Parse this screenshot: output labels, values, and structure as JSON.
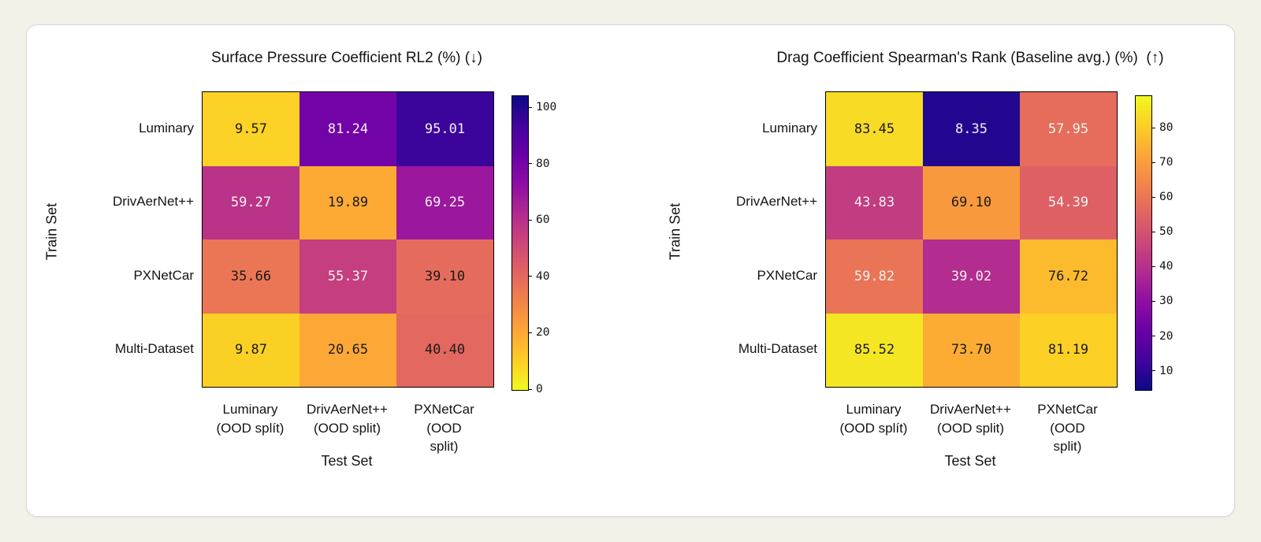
{
  "canvas": {
    "background": "#f2f2e9"
  },
  "card": {
    "background": "#ffffff",
    "border_color": "#d7d7dc"
  },
  "colormap": {
    "name": "plasma",
    "stops": [
      "#0d0887",
      "#41049d",
      "#6a00a8",
      "#8f0da4",
      "#b12a90",
      "#cc4778",
      "#e16462",
      "#f2844b",
      "#fca636",
      "#fcce25",
      "#f0f921"
    ]
  },
  "cell_text_colors": {
    "dark": "#1a1a1a",
    "light": "#f5f2ef"
  },
  "chart_data": [
    {
      "type": "heatmap",
      "title": "Surface Pressure Coefficient RL2 (%) (↓)",
      "xlabel": "Test Set",
      "ylabel": "Train Set",
      "row_labels": [
        "Luminary",
        "DrivAerNet++",
        "PXNetCar",
        "Multi-Dataset"
      ],
      "col_labels": [
        "Luminary\n(OOD splít)",
        "DrivAerNet++\n(OOD split)",
        "PXNetCar\n(OOD split)"
      ],
      "values": [
        [
          9.57,
          81.24,
          95.01
        ],
        [
          59.27,
          19.89,
          69.25
        ],
        [
          35.66,
          55.37,
          39.1
        ],
        [
          9.87,
          20.65,
          40.4
        ]
      ],
      "text_colors": [
        [
          "dark",
          "light",
          "light"
        ],
        [
          "light",
          "dark",
          "light"
        ],
        [
          "dark",
          "light",
          "dark"
        ],
        [
          "dark",
          "dark",
          "dark"
        ]
      ],
      "colormap_reversed": true,
      "colorbar": {
        "vmin": 0,
        "vmax": 104.2,
        "ticks": [
          100,
          80,
          60,
          40,
          20,
          0
        ]
      }
    },
    {
      "type": "heatmap",
      "title": "Drag Coefficient Spearman's Rank (Baseline avg.) (%)  (↑)",
      "xlabel": "Test Set",
      "ylabel": "Train Set",
      "row_labels": [
        "Luminary",
        "DrivAerNet++",
        "PXNetCar",
        "Multi-Dataset"
      ],
      "col_labels": [
        "Luminary\n(OOD splít)",
        "DrivAerNet++\n(OOD split)",
        "PXNetCar\n(OOD split)"
      ],
      "values": [
        [
          83.45,
          8.35,
          57.95
        ],
        [
          43.83,
          69.1,
          54.39
        ],
        [
          59.82,
          39.02,
          76.72
        ],
        [
          85.52,
          73.7,
          81.19
        ]
      ],
      "text_colors": [
        [
          "dark",
          "light",
          "light"
        ],
        [
          "light",
          "dark",
          "light"
        ],
        [
          "light",
          "light",
          "dark"
        ],
        [
          "dark",
          "dark",
          "dark"
        ]
      ],
      "colormap_reversed": false,
      "colorbar": {
        "vmin": 4.7,
        "vmax": 89.3,
        "ticks": [
          80,
          70,
          60,
          50,
          40,
          30,
          20,
          10
        ]
      }
    }
  ]
}
